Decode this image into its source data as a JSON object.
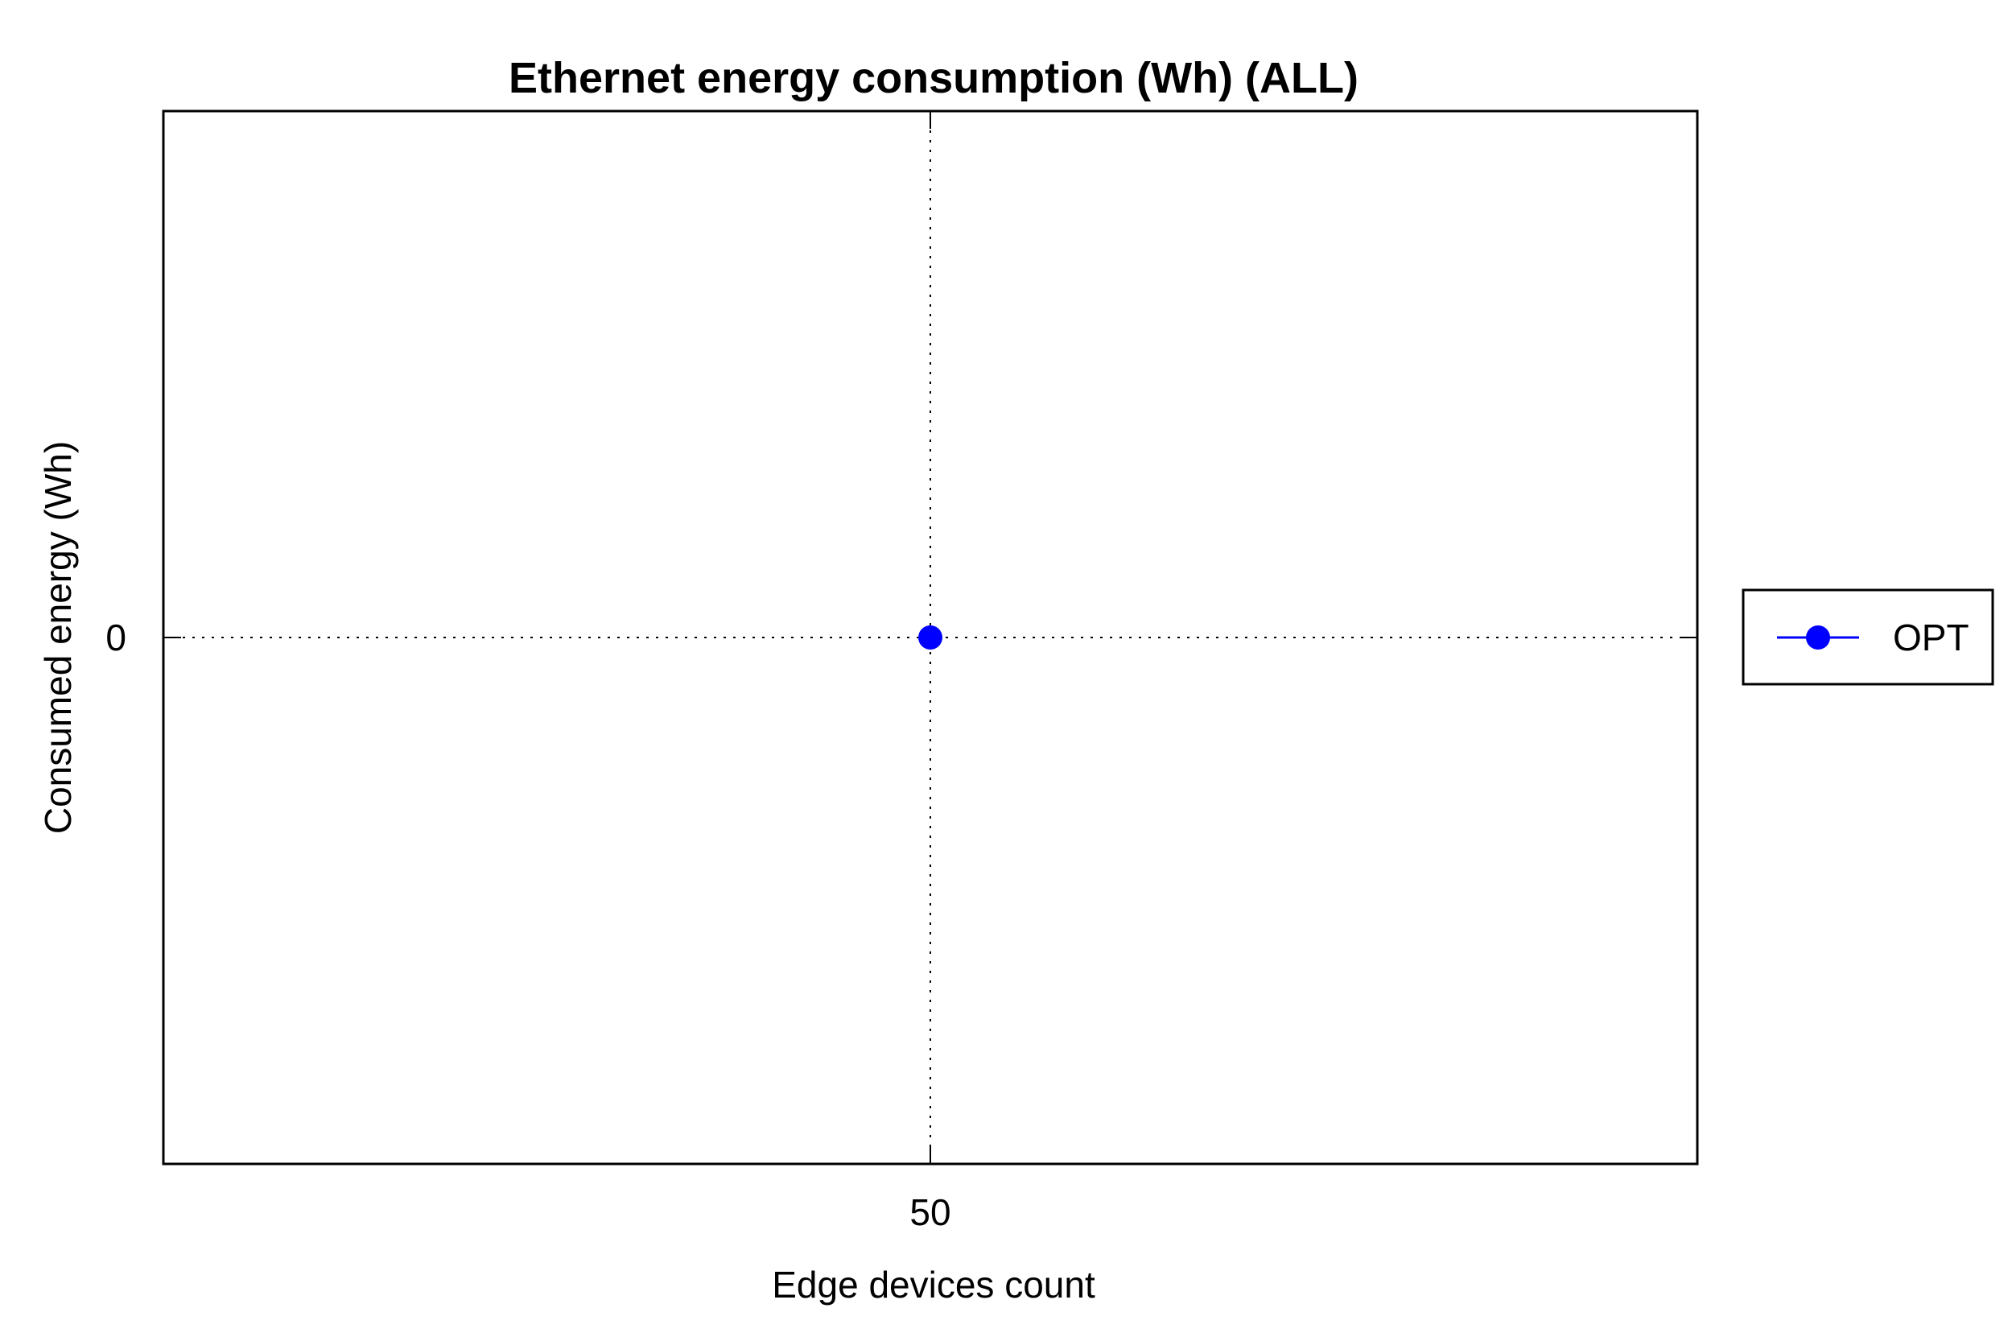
{
  "chart_data": {
    "type": "line",
    "title": "Ethernet energy consumption (Wh) (ALL)",
    "xlabel": "Edge devices count",
    "ylabel": "Consumed energy (Wh)",
    "x": [
      50
    ],
    "xticks": [
      50
    ],
    "yticks": [
      0
    ],
    "xlim": [
      49,
      51
    ],
    "ylim": [
      -1,
      1
    ],
    "grid": true,
    "legend_position": "right",
    "series": [
      {
        "name": "OPT",
        "x": [
          50
        ],
        "values": [
          0
        ],
        "color": "#0000ff",
        "marker": "circle"
      }
    ]
  }
}
